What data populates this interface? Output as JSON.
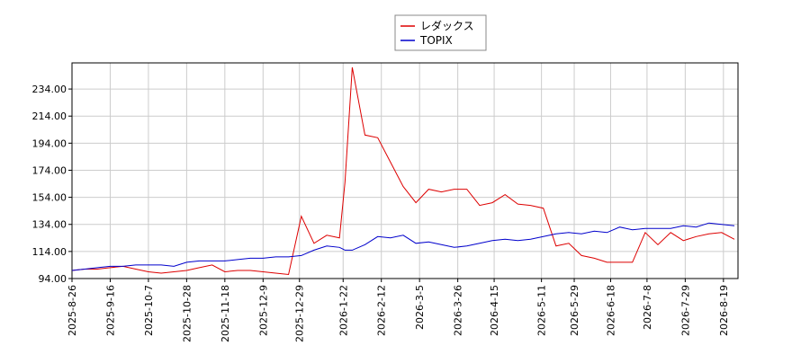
{
  "chart_data": {
    "type": "line",
    "x": [
      "2025-08-26",
      "2025-09-02",
      "2025-09-09",
      "2025-09-16",
      "2025-09-23",
      "2025-09-30",
      "2025-10-07",
      "2025-10-14",
      "2025-10-21",
      "2025-10-28",
      "2025-11-04",
      "2025-11-11",
      "2025-11-18",
      "2025-11-25",
      "2025-12-02",
      "2025-12-09",
      "2025-12-16",
      "2025-12-23",
      "2025-12-30",
      "2026-01-06",
      "2026-01-13",
      "2026-01-20",
      "2026-01-23",
      "2026-01-27",
      "2026-02-03",
      "2026-02-10",
      "2026-02-17",
      "2026-02-24",
      "2026-03-03",
      "2026-03-10",
      "2026-03-17",
      "2026-03-24",
      "2026-03-31",
      "2026-04-07",
      "2026-04-14",
      "2026-04-21",
      "2026-04-28",
      "2026-05-05",
      "2026-05-12",
      "2026-05-19",
      "2026-05-26",
      "2026-06-02",
      "2026-06-09",
      "2026-06-16",
      "2026-06-23",
      "2026-06-30",
      "2026-07-07",
      "2026-07-14",
      "2026-07-21",
      "2026-07-28",
      "2026-08-04",
      "2026-08-11",
      "2026-08-18",
      "2026-08-25"
    ],
    "series": [
      {
        "name": "レダックス",
        "color": "#dd0000",
        "values": [
          100,
          101,
          101,
          102,
          103,
          101,
          99,
          98,
          99,
          100,
          102,
          104,
          99,
          100,
          100,
          99,
          98,
          97,
          140,
          120,
          126,
          124,
          165,
          250,
          200,
          198,
          180,
          162,
          150,
          160,
          158,
          160,
          160,
          148,
          150,
          156,
          149,
          148,
          146,
          118,
          120,
          111,
          109,
          106,
          106,
          106,
          128,
          119,
          128,
          122,
          125,
          127,
          128,
          123
        ]
      },
      {
        "name": "TOPIX",
        "color": "#0000cc",
        "values": [
          100,
          101,
          102,
          103,
          103,
          104,
          104,
          104,
          103,
          106,
          107,
          107,
          107,
          108,
          109,
          109,
          110,
          110,
          111,
          115,
          118,
          117,
          115,
          115,
          119,
          125,
          124,
          126,
          120,
          121,
          119,
          117,
          118,
          120,
          122,
          123,
          122,
          123,
          125,
          127,
          128,
          127,
          129,
          128,
          132,
          130,
          131,
          131,
          131,
          133,
          132,
          135,
          134,
          133
        ]
      }
    ],
    "xlim": [
      "2025-08-26",
      "2026-08-27"
    ],
    "xticks": [
      {
        "value": "2025-08-26",
        "label": "2025-8-26"
      },
      {
        "value": "2025-09-16",
        "label": "2025-9-16"
      },
      {
        "value": "2025-10-07",
        "label": "2025-10-7"
      },
      {
        "value": "2025-10-28",
        "label": "2025-10-28"
      },
      {
        "value": "2025-11-18",
        "label": "2025-11-18"
      },
      {
        "value": "2025-12-09",
        "label": "2025-12-9"
      },
      {
        "value": "2025-12-29",
        "label": "2025-12-29"
      },
      {
        "value": "2026-01-22",
        "label": "2026-1-22"
      },
      {
        "value": "2026-02-12",
        "label": "2026-2-12"
      },
      {
        "value": "2026-03-05",
        "label": "2026-3-5"
      },
      {
        "value": "2026-03-26",
        "label": "2026-3-26"
      },
      {
        "value": "2026-04-15",
        "label": "2026-4-15"
      },
      {
        "value": "2026-05-11",
        "label": "2026-5-11"
      },
      {
        "value": "2026-05-29",
        "label": "2026-5-29"
      },
      {
        "value": "2026-06-18",
        "label": "2026-6-18"
      },
      {
        "value": "2026-07-08",
        "label": "2026-7-8"
      },
      {
        "value": "2026-07-29",
        "label": "2026-7-29"
      },
      {
        "value": "2026-08-19",
        "label": "2026-8-19"
      }
    ],
    "ylim": [
      94,
      253.3
    ],
    "yticks": [
      {
        "value": 94,
        "label": "94.00"
      },
      {
        "value": 114,
        "label": "114.00"
      },
      {
        "value": 134,
        "label": "134.00"
      },
      {
        "value": 154,
        "label": "154.00"
      },
      {
        "value": 174,
        "label": "174.00"
      },
      {
        "value": 194,
        "label": "194.00"
      },
      {
        "value": 214,
        "label": "214.00"
      },
      {
        "value": 234,
        "label": "234.00"
      }
    ],
    "grid": true,
    "legend": "top"
  }
}
